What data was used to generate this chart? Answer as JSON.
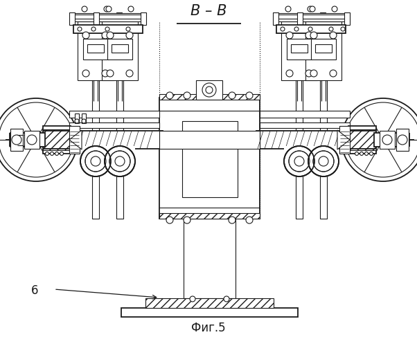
{
  "title": "В – В",
  "caption": "Фиг.5",
  "label_6": "6",
  "bg_color": "#ffffff",
  "line_color": "#1a1a1a",
  "title_fontsize": 15,
  "caption_fontsize": 12,
  "label_fontsize": 12
}
